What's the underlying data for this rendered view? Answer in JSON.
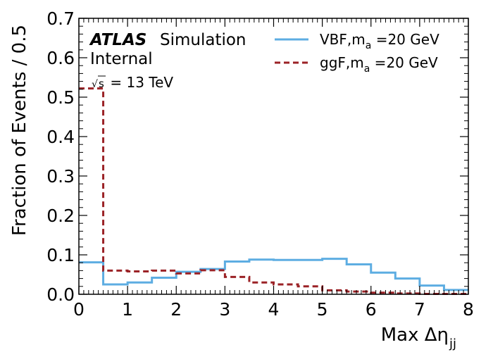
{
  "chart_data": {
    "type": "line",
    "style": "step-histogram",
    "xlabel": "Max Δη",
    "xlabel_subscript": "jj",
    "ylabel": "Fraction of Events / 0.5",
    "xlim": [
      0,
      8
    ],
    "ylim": [
      0,
      0.7
    ],
    "x_ticks": [
      0,
      1,
      2,
      3,
      4,
      5,
      6,
      7,
      8
    ],
    "y_ticks": [
      0.0,
      0.1,
      0.2,
      0.3,
      0.4,
      0.5,
      0.6,
      0.7
    ],
    "y_tick_labels": [
      "0.0",
      "0.1",
      "0.2",
      "0.3",
      "0.4",
      "0.5",
      "0.6",
      "0.7"
    ],
    "bin_edges": [
      0,
      0.5,
      1,
      1.5,
      2,
      2.5,
      3,
      3.5,
      4,
      4.5,
      5,
      5.5,
      6,
      6.5,
      7,
      7.5,
      8
    ],
    "series": [
      {
        "name": "VBF,m",
        "name_subscript": "a",
        "name_suffix": " =20 GeV",
        "color": "#5dade2",
        "dash": "solid",
        "values": [
          0.081,
          0.025,
          0.03,
          0.042,
          0.057,
          0.064,
          0.083,
          0.088,
          0.087,
          0.087,
          0.09,
          0.076,
          0.055,
          0.04,
          0.022,
          0.011
        ]
      },
      {
        "name": "ggF,m",
        "name_subscript": "a",
        "name_suffix": " =20 GeV",
        "color": "#9b2226",
        "dash": "dashed",
        "values": [
          0.522,
          0.06,
          0.058,
          0.06,
          0.053,
          0.061,
          0.044,
          0.03,
          0.025,
          0.02,
          0.01,
          0.007,
          0.004,
          0.002,
          0.001,
          0.001
        ]
      }
    ],
    "legend_position": "top-right",
    "annotations": {
      "experiment": "ATLAS",
      "label": "Simulation",
      "status": "Internal",
      "energy_prefix": "s",
      "energy": " = 13 TeV"
    }
  }
}
